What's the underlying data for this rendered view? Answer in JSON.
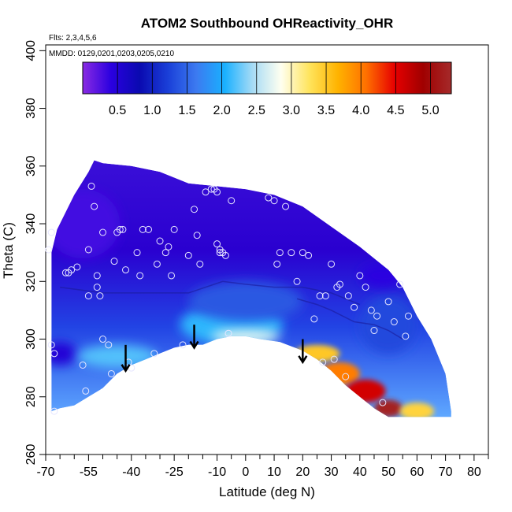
{
  "chart_data": {
    "type": "heatmap",
    "title": "ATOM2 Southbound OHReactivity_OHR",
    "flights_label": "Flts: 2,3,4,5,6",
    "dates_label": "MMDD: 0129,0201,0203,0205,0210",
    "xlabel": "Latitude (deg N)",
    "ylabel": "Theta (C)",
    "xlim": [
      -70,
      85
    ],
    "ylim": [
      260,
      402
    ],
    "x_ticks": [
      -70,
      -55,
      -40,
      -25,
      -10,
      0,
      10,
      20,
      30,
      40,
      50,
      60,
      70,
      80
    ],
    "x_tick_labels": [
      "-70",
      "-55",
      "-40",
      "-25",
      "-10",
      "0",
      "10",
      "20",
      "30",
      "40",
      "50",
      "60",
      "70",
      "80"
    ],
    "x_minor_ticks": [
      -65,
      -60,
      -50,
      -45,
      -35,
      -30,
      -20,
      -15,
      -5,
      5,
      15,
      25,
      35,
      45,
      55,
      65,
      75,
      85
    ],
    "y_ticks": [
      260,
      280,
      300,
      320,
      340,
      360,
      380,
      400
    ],
    "y_tick_labels": [
      "260",
      "280",
      "300",
      "320",
      "340",
      "360",
      "380",
      "400"
    ],
    "colorbar": {
      "range": [
        0,
        5.3
      ],
      "ticks": [
        0.5,
        1.0,
        1.5,
        2.0,
        2.5,
        3.0,
        3.5,
        4.0,
        4.5,
        5.0
      ],
      "tick_labels": [
        "0.5",
        "1.0",
        "1.5",
        "2.0",
        "2.5",
        "3.0",
        "3.5",
        "4.0",
        "4.5",
        "5.0"
      ],
      "colors": [
        "#8a2be2",
        "#2a00e0",
        "#0a0ab0",
        "#1a3fd8",
        "#3c7af0",
        "#19b0ff",
        "#a8dcf5",
        "#fffff0",
        "#ffe45c",
        "#ffb300",
        "#ff7000",
        "#e60000",
        "#a00000",
        "#a52a2a"
      ]
    },
    "upper_boundary": [
      [
        -68,
        330
      ],
      [
        -66,
        338
      ],
      [
        -60,
        350
      ],
      [
        -55,
        358
      ],
      [
        -53,
        362
      ],
      [
        -50,
        361
      ],
      [
        -40,
        360
      ],
      [
        -30,
        358
      ],
      [
        -20,
        354
      ],
      [
        -10,
        353
      ],
      [
        0,
        352
      ],
      [
        10,
        350
      ],
      [
        20,
        346
      ],
      [
        30,
        339
      ],
      [
        40,
        332
      ],
      [
        50,
        324
      ],
      [
        55,
        318
      ],
      [
        60,
        308
      ],
      [
        65,
        300
      ],
      [
        70,
        288
      ],
      [
        72,
        275
      ]
    ],
    "lower_boundary": [
      [
        72,
        273
      ],
      [
        65,
        273
      ],
      [
        57,
        273
      ],
      [
        50,
        273
      ],
      [
        45,
        276
      ],
      [
        40,
        280
      ],
      [
        35,
        284
      ],
      [
        30,
        289
      ],
      [
        25,
        293
      ],
      [
        20,
        296
      ],
      [
        12,
        299
      ],
      [
        5,
        300
      ],
      [
        0,
        301
      ],
      [
        -5,
        301
      ],
      [
        -10,
        300
      ],
      [
        -15,
        298
      ],
      [
        -20,
        298
      ],
      [
        -25,
        297
      ],
      [
        -30,
        295
      ],
      [
        -35,
        293
      ],
      [
        -40,
        291
      ],
      [
        -45,
        288
      ],
      [
        -50,
        283
      ],
      [
        -55,
        280
      ],
      [
        -60,
        277
      ],
      [
        -65,
        276
      ],
      [
        -68,
        275
      ]
    ],
    "anomalies": [
      {
        "name": "southern-stratosphere-purple",
        "lat": -57,
        "theta": 340,
        "value": 0.3,
        "rx": 13,
        "ry": 12
      },
      {
        "name": "southern-lowlevel-purple",
        "lat": -65,
        "theta": 295,
        "value": 0.5,
        "rx": 6,
        "ry": 4
      },
      {
        "name": "southern-lowlevel-lightblue",
        "lat": -45,
        "theta": 294,
        "value": 2.2,
        "rx": 14,
        "ry": 4
      },
      {
        "name": "tropical-lower-cyan",
        "lat": -5,
        "theta": 305,
        "value": 2.1,
        "rx": 18,
        "ry": 7
      },
      {
        "name": "tropical-lower-paleblue",
        "lat": 0,
        "theta": 301,
        "value": 2.7,
        "rx": 12,
        "ry": 2.5
      },
      {
        "name": "tropical-mid-blue",
        "lat": 0,
        "theta": 313,
        "value": 1.4,
        "rx": 20,
        "ry": 7
      },
      {
        "name": "northern-lowlevel-yellow",
        "lat": 25,
        "theta": 295,
        "value": 3.5,
        "rx": 8,
        "ry": 3
      },
      {
        "name": "northern-lowlevel-orange",
        "lat": 33,
        "theta": 288,
        "value": 4.0,
        "rx": 7,
        "ry": 4
      },
      {
        "name": "northern-lowlevel-red",
        "lat": 42,
        "theta": 282,
        "value": 4.6,
        "rx": 7,
        "ry": 4
      },
      {
        "name": "northern-surface-darkred",
        "lat": 50,
        "theta": 276,
        "value": 5.2,
        "rx": 5,
        "ry": 3
      },
      {
        "name": "northern-surface-yellow",
        "lat": 60,
        "theta": 275,
        "value": 3.4,
        "rx": 6,
        "ry": 3
      },
      {
        "name": "northern-mid-blue",
        "lat": 50,
        "theta": 305,
        "value": 1.3,
        "rx": 10,
        "ry": 10
      },
      {
        "name": "northern-upper-purple",
        "lat": 48,
        "theta": 322,
        "value": 0.4,
        "rx": 8,
        "ry": 4
      }
    ],
    "sample_points": [
      [
        -69,
        331
      ],
      [
        -68,
        337
      ],
      [
        -68,
        298
      ],
      [
        -67,
        295
      ],
      [
        -67,
        275
      ],
      [
        -63,
        323
      ],
      [
        -62,
        323
      ],
      [
        -61,
        324
      ],
      [
        -59,
        325
      ],
      [
        -57,
        291
      ],
      [
        -56,
        282
      ],
      [
        -55,
        315
      ],
      [
        -55,
        331
      ],
      [
        -54,
        353
      ],
      [
        -53,
        346
      ],
      [
        -52,
        322
      ],
      [
        -52,
        318
      ],
      [
        -51,
        315
      ],
      [
        -50,
        337
      ],
      [
        -50,
        300
      ],
      [
        -48,
        298
      ],
      [
        -47,
        288
      ],
      [
        -46,
        327
      ],
      [
        -45,
        337
      ],
      [
        -44,
        338
      ],
      [
        -43,
        338
      ],
      [
        -42,
        324
      ],
      [
        -41,
        292
      ],
      [
        -40,
        290
      ],
      [
        -38,
        330
      ],
      [
        -37,
        322
      ],
      [
        -36,
        338
      ],
      [
        -34,
        338
      ],
      [
        -32,
        295
      ],
      [
        -31,
        326
      ],
      [
        -30,
        334
      ],
      [
        -28,
        330
      ],
      [
        -27,
        332
      ],
      [
        -26,
        322
      ],
      [
        -25,
        338
      ],
      [
        -22,
        298
      ],
      [
        -20,
        329
      ],
      [
        -18,
        345
      ],
      [
        -17,
        336
      ],
      [
        -16,
        326
      ],
      [
        -14,
        351
      ],
      [
        -12,
        352
      ],
      [
        -11,
        352
      ],
      [
        -10,
        351
      ],
      [
        -10,
        333
      ],
      [
        -9,
        331
      ],
      [
        -9,
        330
      ],
      [
        -8,
        330
      ],
      [
        -7,
        329
      ],
      [
        -6,
        302
      ],
      [
        -5,
        348
      ],
      [
        8,
        349
      ],
      [
        10,
        348
      ],
      [
        11,
        326
      ],
      [
        12,
        330
      ],
      [
        14,
        346
      ],
      [
        16,
        330
      ],
      [
        18,
        320
      ],
      [
        20,
        330
      ],
      [
        22,
        329
      ],
      [
        24,
        307
      ],
      [
        26,
        315
      ],
      [
        27,
        292
      ],
      [
        28,
        315
      ],
      [
        30,
        326
      ],
      [
        31,
        293
      ],
      [
        32,
        318
      ],
      [
        33,
        319
      ],
      [
        35,
        287
      ],
      [
        36,
        315
      ],
      [
        38,
        311
      ],
      [
        40,
        322
      ],
      [
        42,
        318
      ],
      [
        44,
        310
      ],
      [
        45,
        303
      ],
      [
        46,
        308
      ],
      [
        48,
        278
      ],
      [
        50,
        313
      ],
      [
        52,
        306
      ],
      [
        54,
        319
      ],
      [
        56,
        301
      ],
      [
        57,
        308
      ]
    ],
    "arrows": [
      {
        "lat": -42,
        "theta_top": 298,
        "theta_bottom": 289
      },
      {
        "lat": -18,
        "theta_top": 305,
        "theta_bottom": 297
      },
      {
        "lat": 20,
        "theta_top": 300,
        "theta_bottom": 292
      }
    ],
    "contour_lines": [
      {
        "name": "upper-blue-edge",
        "points": [
          [
            -65,
            318
          ],
          [
            -50,
            316
          ],
          [
            -35,
            316
          ],
          [
            -20,
            316
          ],
          [
            -8,
            320
          ],
          [
            0,
            319
          ],
          [
            10,
            318
          ],
          [
            20,
            318
          ],
          [
            30,
            316
          ],
          [
            40,
            312
          ]
        ]
      },
      {
        "name": "northern-midlevel-edge",
        "points": [
          [
            18,
            314
          ],
          [
            25,
            312
          ],
          [
            30,
            310
          ],
          [
            38,
            306
          ],
          [
            45,
            305
          ],
          [
            50,
            303
          ],
          [
            55,
            300
          ]
        ]
      }
    ]
  }
}
